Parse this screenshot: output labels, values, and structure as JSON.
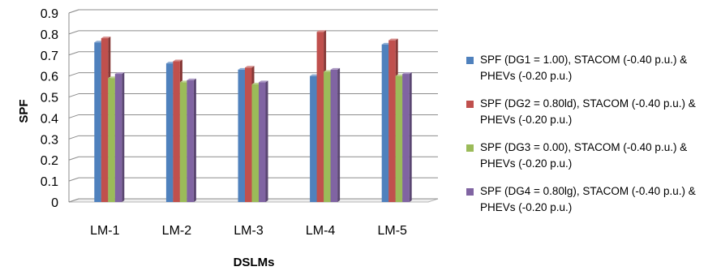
{
  "chart_data": {
    "type": "bar",
    "categories": [
      "LM-1",
      "LM-2",
      "LM-3",
      "LM-4",
      "LM-5"
    ],
    "series": [
      {
        "name": "SPF (DG1 = 1.00), STACOM (-0.40 p.u.) & PHEVs (-0.20 p.u.)",
        "color": "#4f81bd",
        "values": [
          0.76,
          0.66,
          0.63,
          0.6,
          0.75
        ]
      },
      {
        "name": "SPF (DG2 = 0.80ld), STACOM (-0.40 p.u.) & PHEVs (-0.20 p.u.)",
        "color": "#c0504d",
        "values": [
          0.78,
          0.67,
          0.64,
          0.81,
          0.77
        ]
      },
      {
        "name": "SPF (DG3 = 0.00), STACOM (-0.40 p.u.) & PHEVs (-0.20 p.u.)",
        "color": "#9bbb59",
        "values": [
          0.59,
          0.57,
          0.56,
          0.62,
          0.6
        ]
      },
      {
        "name": "SPF (DG4 = 0.80lg), STACOM (-0.40 p.u.) & PHEVs (-0.20 p.u.)",
        "color": "#8064a2",
        "values": [
          0.61,
          0.58,
          0.57,
          0.63,
          0.61
        ]
      }
    ],
    "xlabel": "DSLMs",
    "ylabel": "SPF",
    "ylim": [
      0,
      0.9
    ],
    "yticks": [
      "0",
      "0.1",
      "0.2",
      "0.3",
      "0.4",
      "0.5",
      "0.6",
      "0.7",
      "0.8",
      "0.9"
    ],
    "grid": true,
    "legend_position": "right"
  }
}
